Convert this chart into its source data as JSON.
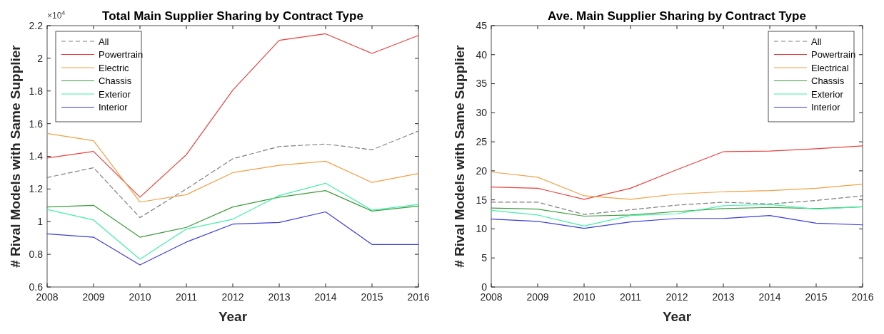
{
  "chart_data": [
    {
      "type": "line",
      "title": "Total Main Supplier Sharing by Contract Type",
      "xlabel": "Year",
      "ylabel": "# Rival Models with Same Supplier",
      "annotations": [
        "×10$^{4}$"
      ],
      "x": [
        2008,
        2009,
        2010,
        2011,
        2012,
        2013,
        2014,
        2015,
        2016
      ],
      "xlim": [
        2008,
        2016
      ],
      "xticks": [
        2008,
        2009,
        2010,
        2011,
        2012,
        2013,
        2014,
        2015,
        2016
      ],
      "ylim": [
        0.6,
        2.2
      ],
      "yticks": [
        0.6,
        0.8,
        1,
        1.2,
        1.4,
        1.6,
        1.8,
        2,
        2.2
      ],
      "grid": false,
      "legend": "top left",
      "series": [
        {
          "name": "All",
          "color": "#808080",
          "line_style": "dashed",
          "values": [
            1.27,
            1.33,
            1.025,
            1.2,
            1.385,
            1.46,
            1.475,
            1.44,
            1.555
          ]
        },
        {
          "name": "Powertrain",
          "color": "#e8413f",
          "line_style": "solid",
          "values": [
            1.39,
            1.43,
            1.15,
            1.41,
            1.805,
            2.11,
            2.15,
            2.03,
            2.14
          ]
        },
        {
          "name": "Electric",
          "color": "#f0a044",
          "line_style": "solid",
          "values": [
            1.54,
            1.495,
            1.12,
            1.165,
            1.3,
            1.345,
            1.37,
            1.24,
            1.295
          ]
        },
        {
          "name": "Chassis",
          "color": "#3e9a3e",
          "line_style": "solid",
          "values": [
            1.09,
            1.1,
            0.905,
            0.965,
            1.09,
            1.15,
            1.19,
            1.065,
            1.095
          ]
        },
        {
          "name": "Exterior",
          "color": "#44eeaa",
          "line_style": "solid",
          "values": [
            1.075,
            1.01,
            0.77,
            0.955,
            1.015,
            1.16,
            1.235,
            1.07,
            1.105
          ]
        },
        {
          "name": "Interior",
          "color": "#3c3cdc",
          "line_style": "solid",
          "values": [
            0.925,
            0.905,
            0.735,
            0.875,
            0.985,
            0.995,
            1.06,
            0.86,
            0.86
          ]
        }
      ]
    },
    {
      "type": "line",
      "title": "Ave. Main Supplier Sharing by Contract Type",
      "xlabel": "Year",
      "ylabel": "# Rival Models with Same Supplier",
      "x": [
        2008,
        2009,
        2010,
        2011,
        2012,
        2013,
        2014,
        2015,
        2016
      ],
      "xlim": [
        2008,
        2016
      ],
      "xticks": [
        2008,
        2009,
        2010,
        2011,
        2012,
        2013,
        2014,
        2015,
        2016
      ],
      "ylim": [
        0,
        45
      ],
      "yticks": [
        0,
        5,
        10,
        15,
        20,
        25,
        30,
        35,
        40,
        45
      ],
      "grid": false,
      "legend": "top right",
      "series": [
        {
          "name": "All",
          "color": "#808080",
          "line_style": "dashed",
          "values": [
            14.6,
            14.6,
            12.5,
            13.3,
            14.1,
            14.6,
            14.3,
            14.9,
            15.7
          ]
        },
        {
          "name": "Powertrain",
          "color": "#e8413f",
          "line_style": "solid",
          "values": [
            17.2,
            17.0,
            15.1,
            17.0,
            20.2,
            23.3,
            23.4,
            23.8,
            24.3
          ]
        },
        {
          "name": "Electrical",
          "color": "#f0a044",
          "line_style": "solid",
          "values": [
            19.8,
            18.9,
            15.7,
            15.1,
            16.0,
            16.4,
            16.6,
            17.0,
            17.7
          ]
        },
        {
          "name": "Chassis",
          "color": "#3e9a3e",
          "line_style": "solid",
          "values": [
            13.6,
            13.4,
            12.2,
            12.4,
            13.0,
            13.5,
            13.7,
            13.5,
            13.8
          ]
        },
        {
          "name": "Exterior",
          "color": "#44eeaa",
          "line_style": "solid",
          "values": [
            13.2,
            12.4,
            10.5,
            12.3,
            12.6,
            14.0,
            14.2,
            13.4,
            13.8
          ]
        },
        {
          "name": "Interior",
          "color": "#3c3cdc",
          "line_style": "solid",
          "values": [
            11.7,
            11.3,
            10.1,
            11.2,
            11.8,
            11.8,
            12.3,
            11.0,
            10.7
          ]
        }
      ]
    }
  ]
}
